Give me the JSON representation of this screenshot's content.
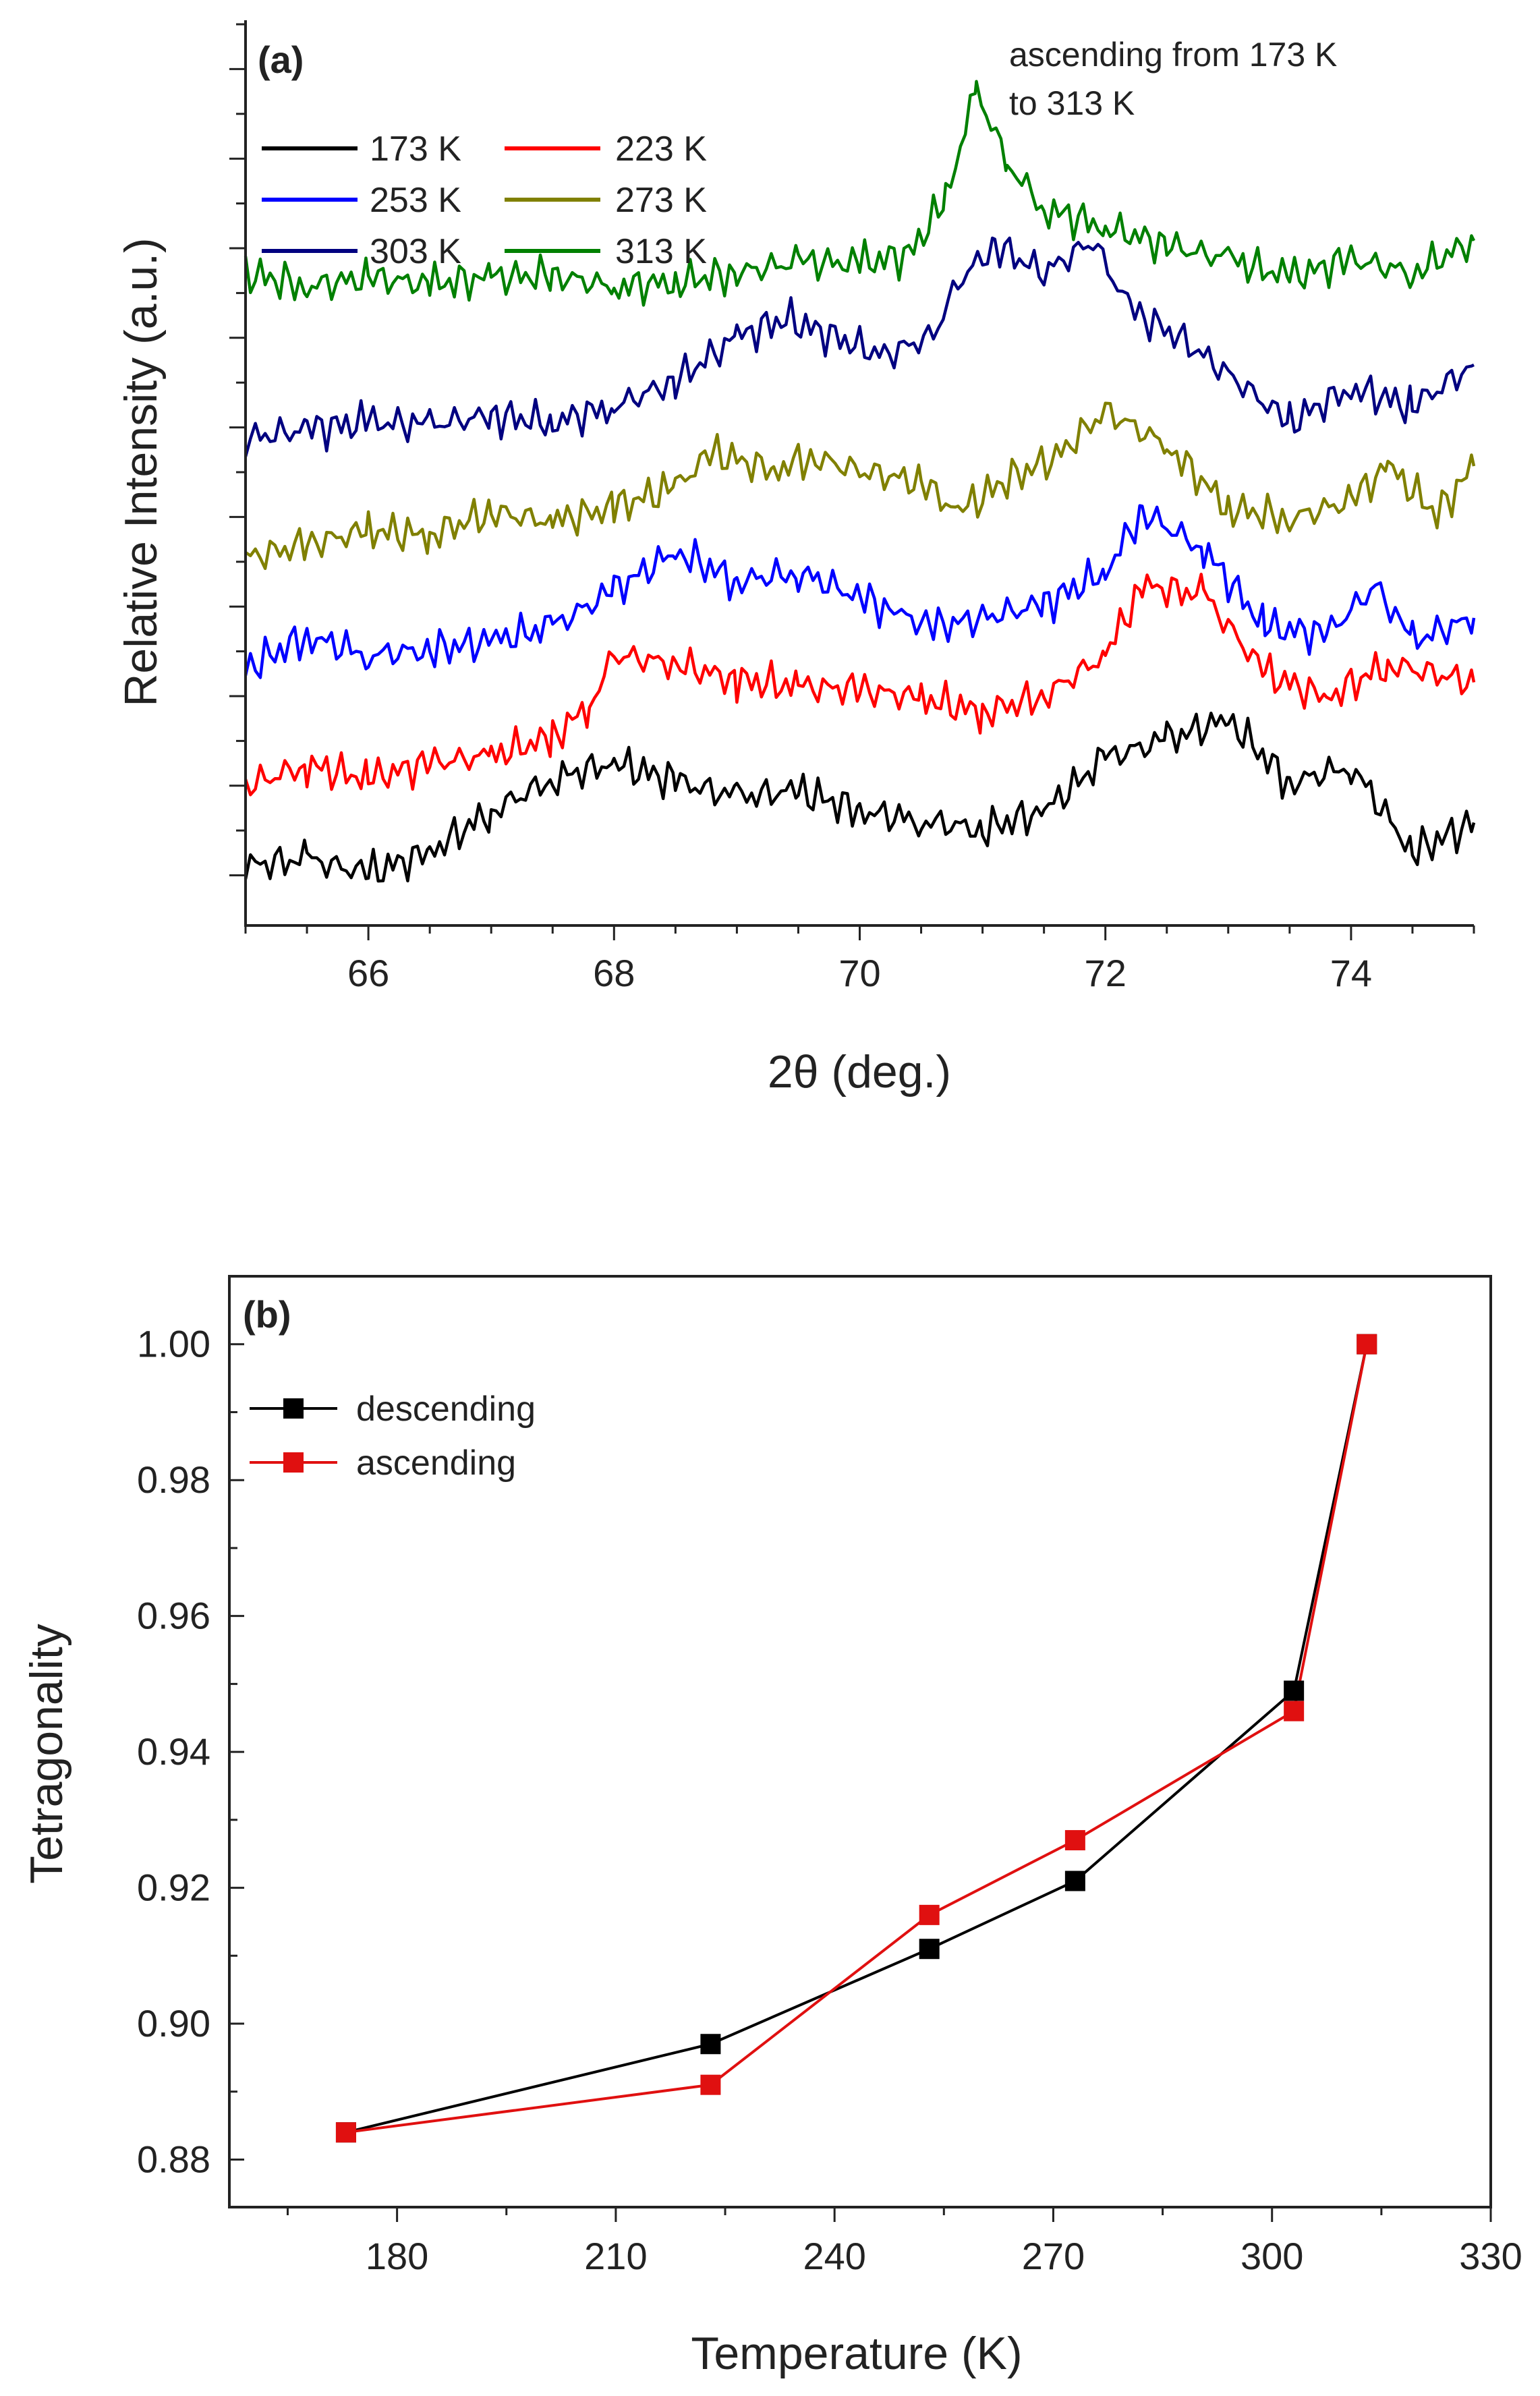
{
  "chart_data": [
    {
      "panel_label": "(a)",
      "type": "line",
      "xlabel": "2θ (deg.)",
      "ylabel": "Relative Intensity (a.u.)",
      "xlim": [
        65,
        75
      ],
      "xticks": [
        66,
        68,
        70,
        72,
        74
      ],
      "xtick_labels": [
        "66",
        "68",
        "70",
        "72",
        "74"
      ],
      "y_axis_tick_labels_shown": false,
      "annotation": [
        "ascending from 173 K",
        "to 313 K"
      ],
      "legend": [
        "173 K",
        "223 K",
        "253 K",
        "273 K",
        "303 K",
        "313 K"
      ],
      "series": [
        {
          "name": "173 K",
          "color": "#000000",
          "points": [
            [
              65,
              0.72
            ],
            [
              65.5,
              0.85
            ],
            [
              66,
              0.55
            ],
            [
              66.5,
              1.0
            ],
            [
              67,
              1.9
            ],
            [
              67.5,
              2.6
            ],
            [
              68,
              2.95
            ],
            [
              68.5,
              2.55
            ],
            [
              69,
              2.2
            ],
            [
              69.5,
              2.35
            ],
            [
              70,
              1.9
            ],
            [
              70.5,
              1.7
            ],
            [
              71,
              1.5
            ],
            [
              71.5,
              1.9
            ],
            [
              72,
              3.05
            ],
            [
              72.5,
              3.45
            ],
            [
              73,
              3.9
            ],
            [
              73.5,
              2.5
            ],
            [
              74,
              2.9
            ],
            [
              74.5,
              1.0
            ],
            [
              75,
              1.65
            ]
          ]
        },
        {
          "name": "223 K",
          "color": "#ff0000",
          "points": [
            [
              65,
              2.45
            ],
            [
              65.5,
              2.9
            ],
            [
              66,
              2.6
            ],
            [
              66.5,
              2.95
            ],
            [
              67,
              3.1
            ],
            [
              67.5,
              3.5
            ],
            [
              67.8,
              4.2
            ],
            [
              68,
              5.3
            ],
            [
              68.5,
              5.1
            ],
            [
              69,
              4.75
            ],
            [
              69.5,
              4.6
            ],
            [
              70,
              4.55
            ],
            [
              70.5,
              4.35
            ],
            [
              71,
              4.05
            ],
            [
              71.5,
              4.4
            ],
            [
              72,
              5.3
            ],
            [
              72.3,
              6.8
            ],
            [
              72.8,
              6.6
            ],
            [
              73.3,
              4.9
            ],
            [
              73.8,
              4.35
            ],
            [
              74.3,
              5.1
            ],
            [
              75,
              4.7
            ]
          ]
        },
        {
          "name": "253 K",
          "color": "#0000ff",
          "points": [
            [
              65,
              5.0
            ],
            [
              65.5,
              5.7
            ],
            [
              66,
              5.3
            ],
            [
              66.5,
              5.4
            ],
            [
              67,
              5.6
            ],
            [
              67.5,
              5.9
            ],
            [
              68,
              6.7
            ],
            [
              68.5,
              7.55
            ],
            [
              69,
              6.9
            ],
            [
              69.5,
              7.1
            ],
            [
              70,
              6.55
            ],
            [
              70.3,
              6.2
            ],
            [
              70.6,
              5.9
            ],
            [
              71,
              6.1
            ],
            [
              71.5,
              6.4
            ],
            [
              72,
              7.1
            ],
            [
              72.3,
              8.4
            ],
            [
              72.8,
              7.6
            ],
            [
              73.3,
              5.9
            ],
            [
              73.8,
              5.75
            ],
            [
              74.2,
              6.8
            ],
            [
              74.5,
              5.6
            ],
            [
              75,
              6.1
            ]
          ]
        },
        {
          "name": "273 K",
          "color": "#808000",
          "points": [
            [
              65,
              7.4
            ],
            [
              65.5,
              7.7
            ],
            [
              66,
              8.0
            ],
            [
              66.5,
              7.9
            ],
            [
              67,
              8.4
            ],
            [
              67.5,
              8.2
            ],
            [
              68,
              8.5
            ],
            [
              68.5,
              8.95
            ],
            [
              68.8,
              9.7
            ],
            [
              69.3,
              9.3
            ],
            [
              69.6,
              9.6
            ],
            [
              70,
              9.3
            ],
            [
              70.5,
              9.05
            ],
            [
              70.8,
              8.4
            ],
            [
              71.2,
              9.1
            ],
            [
              71.6,
              9.6
            ],
            [
              72,
              10.6
            ],
            [
              72.5,
              9.85
            ],
            [
              73,
              8.5
            ],
            [
              73.5,
              8.25
            ],
            [
              74,
              8.65
            ],
            [
              74.3,
              9.4
            ],
            [
              74.7,
              8.35
            ],
            [
              75,
              9.4
            ]
          ]
        },
        {
          "name": "303 K",
          "color": "#000080",
          "points": [
            [
              65,
              10.0
            ],
            [
              65.5,
              10.2
            ],
            [
              66,
              10.35
            ],
            [
              66.5,
              10.3
            ],
            [
              67,
              10.5
            ],
            [
              67.5,
              10.35
            ],
            [
              68,
              10.7
            ],
            [
              68.5,
              11.25
            ],
            [
              69,
              12.2
            ],
            [
              69.4,
              12.6
            ],
            [
              69.8,
              12.2
            ],
            [
              70.2,
              11.8
            ],
            [
              70.6,
              12.25
            ],
            [
              70.8,
              13.4
            ],
            [
              71.1,
              14.2
            ],
            [
              71.5,
              13.6
            ],
            [
              71.9,
              14.3
            ],
            [
              72.2,
              12.8
            ],
            [
              72.6,
              12.2
            ],
            [
              73.0,
              11.4
            ],
            [
              73.5,
              10.35
            ],
            [
              74,
              11.1
            ],
            [
              74.5,
              10.7
            ],
            [
              75,
              11.6
            ]
          ]
        },
        {
          "name": "313 K",
          "color": "#008000",
          "points": [
            [
              65,
              13.6
            ],
            [
              65.5,
              13.3
            ],
            [
              66,
              13.5
            ],
            [
              66.5,
              13.35
            ],
            [
              67,
              13.5
            ],
            [
              67.5,
              13.55
            ],
            [
              68,
              13.3
            ],
            [
              68.5,
              13.4
            ],
            [
              69,
              13.6
            ],
            [
              69.5,
              13.85
            ],
            [
              70,
              13.8
            ],
            [
              70.4,
              14.0
            ],
            [
              70.7,
              15.2
            ],
            [
              70.95,
              17.6
            ],
            [
              71.2,
              16.0
            ],
            [
              71.5,
              15.0
            ],
            [
              72,
              14.6
            ],
            [
              72.5,
              14.2
            ],
            [
              73,
              13.9
            ],
            [
              73.5,
              13.5
            ],
            [
              74,
              13.9
            ],
            [
              74.5,
              13.6
            ],
            [
              75,
              14.3
            ]
          ]
        }
      ]
    },
    {
      "panel_label": "(b)",
      "type": "line",
      "xlabel": "Temperature (K)",
      "ylabel": "Tetragonality",
      "xlim": [
        157,
        330
      ],
      "ylim": [
        0.873,
        1.01
      ],
      "xticks": [
        180,
        210,
        240,
        270,
        300,
        330
      ],
      "xtick_labels": [
        "180",
        "210",
        "240",
        "270",
        "300",
        "330"
      ],
      "yticks": [
        0.88,
        0.9,
        0.92,
        0.94,
        0.96,
        0.98,
        1.0
      ],
      "ytick_labels": [
        "0.88",
        "0.90",
        "0.92",
        "0.94",
        "0.96",
        "0.98",
        "1.00"
      ],
      "legend": [
        "descending",
        "ascending"
      ],
      "series": [
        {
          "name": "descending",
          "color": "#000000",
          "x": [
            173,
            223,
            253,
            273,
            303,
            313
          ],
          "values": [
            0.884,
            0.897,
            0.911,
            0.921,
            0.949,
            1.0
          ]
        },
        {
          "name": "ascending",
          "color": "#e01010",
          "x": [
            173,
            223,
            253,
            273,
            303,
            313
          ],
          "values": [
            0.884,
            0.891,
            0.916,
            0.927,
            0.946,
            1.0
          ]
        }
      ]
    }
  ]
}
